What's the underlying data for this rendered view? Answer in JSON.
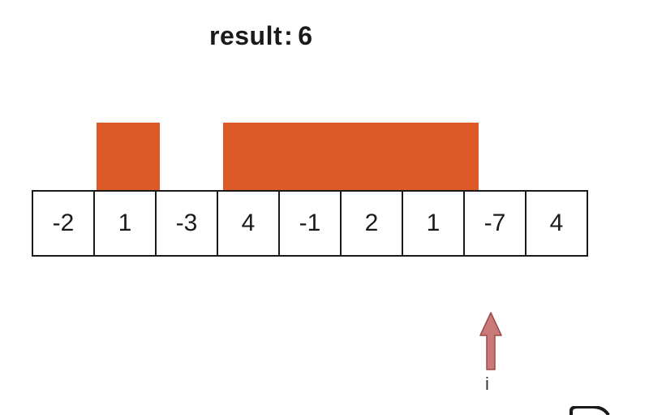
{
  "header": {
    "label": "result",
    "separator": ":",
    "value": "6"
  },
  "array": {
    "values": [
      "-2",
      "1",
      "-3",
      "4",
      "-1",
      "2",
      "1",
      "-7",
      "4"
    ]
  },
  "pointer": {
    "label": "i"
  },
  "colors": {
    "highlight": "#dd5a28",
    "arrow": "#c97a78",
    "cell_border": "#1a1a1a"
  }
}
